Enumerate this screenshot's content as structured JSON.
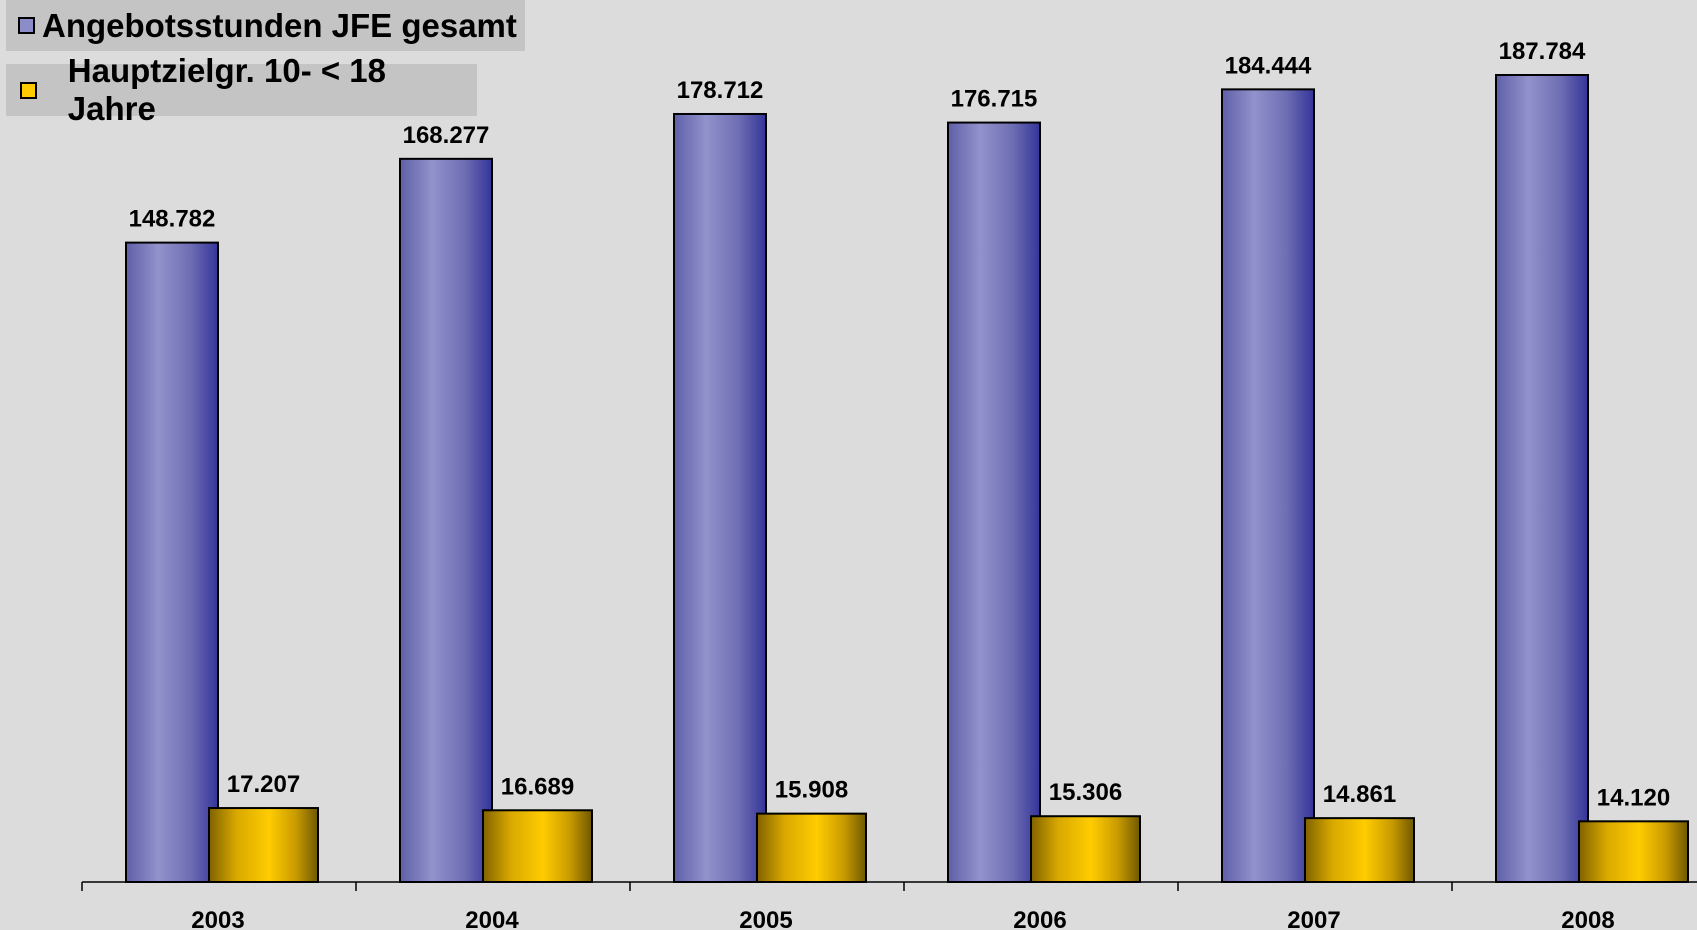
{
  "legend": [
    {
      "label": "Angebotsstunden JFE gesamt",
      "color": "#8c8cc8"
    },
    {
      "label": "Hauptzielgr. 10- < 18 Jahre",
      "color": "#ffcc00"
    }
  ],
  "chart_data": {
    "type": "bar",
    "categories": [
      "2003",
      "2004",
      "2005",
      "2006",
      "2007",
      "2008"
    ],
    "series": [
      {
        "name": "Angebotsstunden JFE gesamt",
        "values": [
          148782,
          168277,
          178712,
          176715,
          184444,
          187784
        ],
        "labels": [
          "148.782",
          "168.277",
          "178.712",
          "176.715",
          "184.444",
          "187.784"
        ],
        "color": "#8c8cc8"
      },
      {
        "name": "Hauptzielgr. 10- < 18 Jahre",
        "values": [
          17207,
          16689,
          15908,
          15306,
          14861,
          14120
        ],
        "labels": [
          "17.207",
          "16.689",
          "15.908",
          "15.306",
          "14.861",
          "14.120"
        ],
        "color": "#ffcc00"
      }
    ],
    "legend_position": "top-left",
    "grid": false,
    "y_axis_visible": false,
    "value_labels": true
  }
}
